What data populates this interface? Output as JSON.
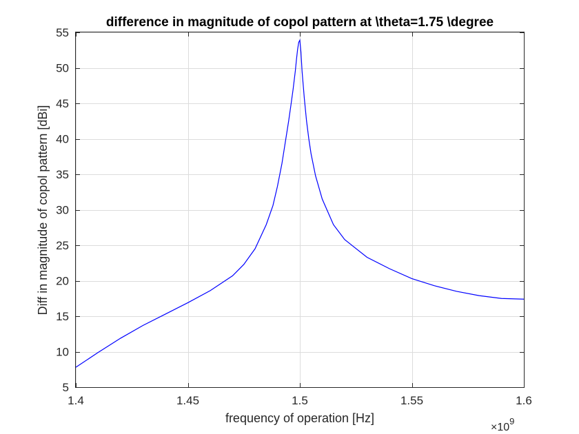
{
  "chart_data": {
    "type": "line",
    "title": "difference in magnitude of copol pattern at \\theta=1.75 \\degree",
    "xlabel": "frequency of operation [Hz]",
    "ylabel": "Diff in magnitude of copol pattern [dBi]",
    "x_exponent_label": "×10",
    "x_exponent_power": "9",
    "xlim": [
      1.4,
      1.6
    ],
    "ylim": [
      5,
      55
    ],
    "xticks": [
      "1.4",
      "1.45",
      "1.5",
      "1.55",
      "1.6"
    ],
    "yticks": [
      "5",
      "10",
      "15",
      "20",
      "25",
      "30",
      "35",
      "40",
      "45",
      "50",
      "55"
    ],
    "grid": true,
    "series": [
      {
        "color": "#0000ff",
        "x": [
          1.4,
          1.41,
          1.42,
          1.43,
          1.44,
          1.45,
          1.46,
          1.47,
          1.475,
          1.48,
          1.485,
          1.488,
          1.49,
          1.492,
          1.494,
          1.495,
          1.496,
          1.497,
          1.498,
          1.4985,
          1.499,
          1.4995,
          1.5,
          1.5005,
          1.501,
          1.5015,
          1.502,
          1.503,
          1.504,
          1.505,
          1.507,
          1.51,
          1.515,
          1.52,
          1.53,
          1.54,
          1.55,
          1.56,
          1.57,
          1.58,
          1.59,
          1.6
        ],
        "y": [
          7.8,
          9.9,
          11.9,
          13.7,
          15.3,
          16.9,
          18.6,
          20.7,
          22.3,
          24.5,
          27.9,
          30.6,
          33.3,
          36.5,
          40.5,
          42.5,
          44.7,
          47.0,
          49.6,
          51.2,
          52.6,
          53.6,
          53.9,
          52.2,
          49.5,
          47.6,
          45.7,
          42.5,
          40.0,
          37.9,
          34.8,
          31.5,
          27.9,
          25.8,
          23.3,
          21.7,
          20.3,
          19.3,
          18.5,
          17.9,
          17.5,
          17.4
        ]
      }
    ]
  }
}
